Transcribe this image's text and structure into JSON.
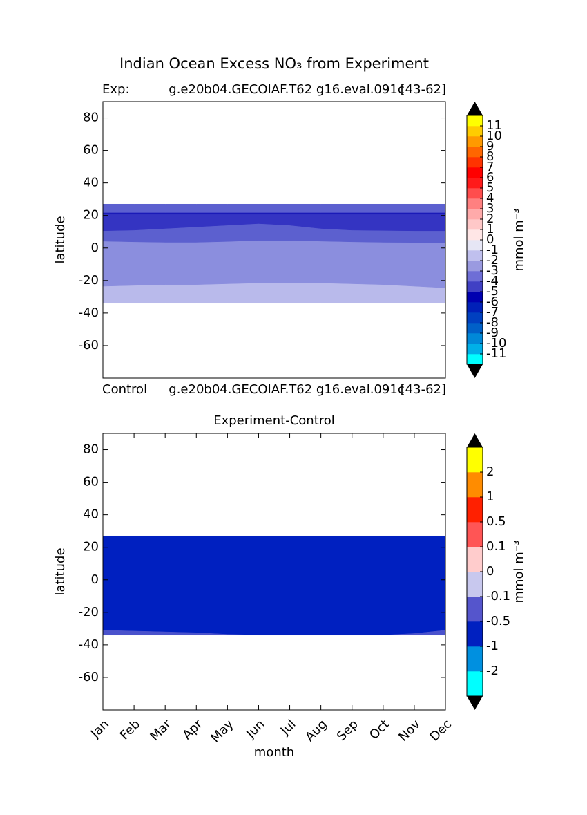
{
  "chart_data": [
    {
      "type": "contour",
      "title": "Indian Ocean Excess NO₃ from Experiment",
      "subtitle_left": "Exp:",
      "subtitle_center": "g.e20b04.GECOIAF.T62 g16.eval.091c",
      "subtitle_right": "[43-62]",
      "footer_left": "Control",
      "footer_center": "g.e20b04.GECOIAF.T62 g16.eval.091c",
      "footer_right": "[43-62]",
      "y_label": "latitude",
      "ylim": [
        -80,
        90
      ],
      "yticks": [
        -60,
        -40,
        -20,
        0,
        20,
        40,
        60,
        80
      ],
      "bands": [
        {
          "color": "#b9baeb",
          "upper": [
            -23.5,
            -23,
            -22.5,
            -22.5,
            -22,
            -21.5,
            -21.5,
            -21.5,
            -22,
            -22.5,
            -23.5,
            -24.5
          ],
          "lower": [
            -34,
            -34,
            -34,
            -34,
            -34,
            -34,
            -34,
            -34,
            -34,
            -34,
            -34,
            -34
          ]
        },
        {
          "color": "#8b8ede",
          "upper": [
            4.2,
            3.8,
            3.5,
            3.5,
            4,
            4.7,
            4.7,
            4.2,
            3.8,
            3.5,
            3.4,
            3.4
          ],
          "lower": [
            -23.5,
            -23,
            -22.5,
            -22.5,
            -22,
            -21.5,
            -21.5,
            -21.5,
            -22,
            -22.5,
            -23.5,
            -24.5
          ]
        },
        {
          "color": "#5c60cf",
          "upper": [
            27,
            27,
            27,
            27,
            27,
            27,
            27,
            27,
            27,
            27,
            27,
            27
          ],
          "lower": [
            4.2,
            3.8,
            3.5,
            3.5,
            4,
            4.7,
            4.7,
            4.2,
            3.8,
            3.5,
            3.4,
            3.4
          ]
        },
        {
          "color": "#3434c2",
          "upper": [
            21.5,
            21.5,
            21.5,
            21.5,
            21.5,
            21.5,
            21.5,
            21.5,
            21.5,
            21.5,
            21.5,
            21.5
          ],
          "lower": [
            10.6,
            11,
            12,
            13,
            14,
            15,
            14,
            12,
            11,
            10.8,
            10.6,
            10.6
          ]
        },
        {
          "color": "#1a1ab8",
          "upper": [
            21.6,
            21.6,
            21.6,
            21.6,
            21.6,
            21.6,
            21.6,
            21.6,
            21.6,
            21.6,
            21.6,
            21.6
          ],
          "lower": [
            20.8,
            20.8,
            20.8,
            20.8,
            20.8,
            20.8,
            20.8,
            20.8,
            20.8,
            20.8,
            20.8,
            20.8
          ]
        }
      ],
      "colorbar": {
        "label": "mmol m⁻³",
        "levels": [
          -11,
          -10,
          -9,
          -8,
          -7,
          -6,
          -5,
          -4,
          -3,
          -2,
          -1,
          0,
          1,
          2,
          3,
          4,
          5,
          6,
          7,
          8,
          9,
          10,
          11
        ],
        "colors": [
          "#00ffff",
          "#00b0e8",
          "#0088d8",
          "#0060c8",
          "#0040c0",
          "#0020b8",
          "#0000b0",
          "#4040c4",
          "#6e6ed6",
          "#9a9ae0",
          "#c0c0ee",
          "#e6e6f5",
          "#ffe6e6",
          "#ffc8c8",
          "#ffaaaa",
          "#ff8080",
          "#ff4d4d",
          "#ff1a1a",
          "#ff0000",
          "#ff3300",
          "#ff6600",
          "#ff9900",
          "#ffcc00",
          "#ffff00"
        ]
      }
    },
    {
      "type": "contour",
      "title": "Experiment-Control",
      "y_label": "latitude",
      "x_label": "month",
      "categories": [
        "Jan",
        "Feb",
        "Mar",
        "Apr",
        "May",
        "Jun",
        "Jul",
        "Aug",
        "Sep",
        "Oct",
        "Nov",
        "Dec"
      ],
      "ylim": [
        -80,
        90
      ],
      "yticks": [
        -60,
        -40,
        -20,
        0,
        20,
        40,
        60,
        80
      ],
      "bands": [
        {
          "color": "#0020c0",
          "upper": [
            27,
            27,
            27,
            27,
            27,
            27,
            27,
            27,
            27,
            27,
            27,
            27
          ],
          "lower": [
            -34,
            -34,
            -34,
            -34,
            -34,
            -34,
            -34,
            -34,
            -34,
            -34,
            -34,
            -34
          ]
        },
        {
          "color": "#4a52cc",
          "upper": [
            -31,
            -31.5,
            -32,
            -32.5,
            -33.5,
            -34,
            -34,
            -34,
            -34,
            -34,
            -33,
            -31
          ],
          "lower": [
            -34,
            -34,
            -34,
            -34,
            -34,
            -34,
            -34,
            -34,
            -34,
            -34,
            -34,
            -34
          ]
        }
      ],
      "colorbar": {
        "label": "mmol m⁻³",
        "levels": [
          -2,
          -1,
          -0.5,
          -0.1,
          0,
          0.1,
          0.5,
          1,
          2
        ],
        "colors": [
          "#00ffff",
          "#0090e0",
          "#0020c0",
          "#5555cc",
          "#c8c8ee",
          "#ffcccc",
          "#ff5555",
          "#ff2000",
          "#ff8c00",
          "#ffff00"
        ]
      }
    }
  ]
}
